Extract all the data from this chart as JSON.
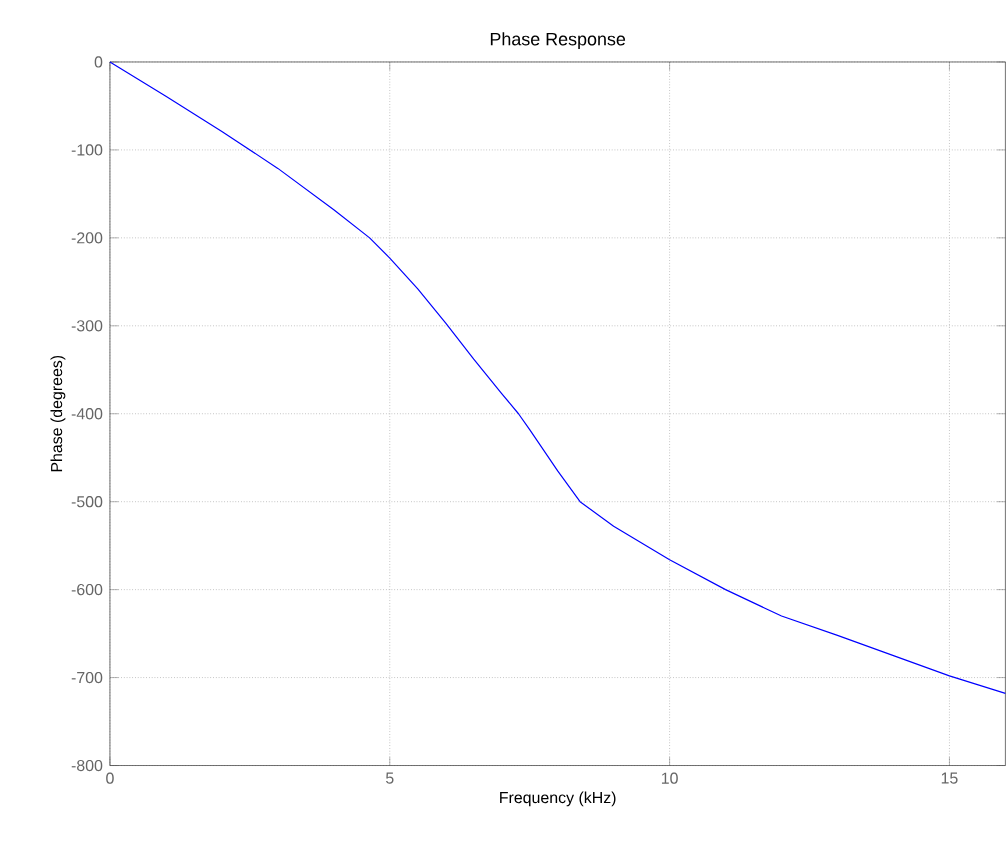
{
  "chart_data": {
    "type": "line",
    "title": "Phase  Response",
    "xlabel": "Frequency (kHz)",
    "ylabel": "Phase (degrees)",
    "x": [
      0,
      1,
      2,
      3,
      4,
      4.64,
      5,
      5.5,
      6,
      6.5,
      7,
      7.3,
      7.5,
      8,
      8.4,
      9,
      10,
      11,
      12,
      13,
      14,
      15,
      16
    ],
    "series": [
      {
        "color": "#0000ff",
        "values": [
          0,
          -39,
          -79,
          -121,
          -168,
          -200,
          -223,
          -258,
          -297,
          -338,
          -377,
          -400,
          -418,
          -465,
          -500,
          -528,
          -566,
          -600,
          -630,
          -652,
          -675,
          -698,
          -718
        ]
      }
    ],
    "xlim": [
      0,
      16
    ],
    "xticks": [
      0,
      5,
      10,
      15
    ],
    "ylim": [
      -800,
      0
    ],
    "yticks": [
      -800,
      -700,
      -600,
      -500,
      -400,
      -300,
      -200,
      -100,
      0
    ],
    "grid": true,
    "marker": "none",
    "line_style": "solid"
  }
}
